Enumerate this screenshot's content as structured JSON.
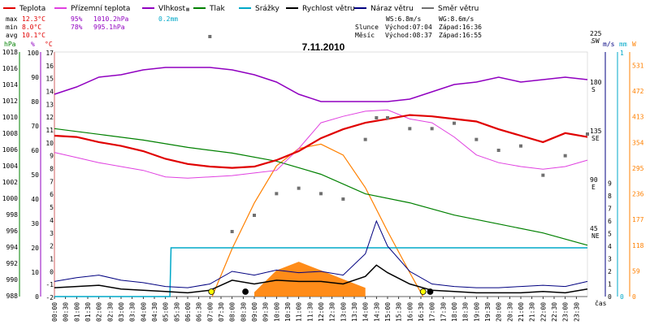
{
  "legend": [
    {
      "label": "Teplota",
      "color": "#e00000"
    },
    {
      "label": "Přízemní teplota",
      "color": "#e040e0"
    },
    {
      "label": "Vlhkost",
      "color": "#9000c0"
    },
    {
      "label": "Tlak",
      "color": "#008000"
    },
    {
      "label": "Srážky",
      "color": "#00a8c8"
    },
    {
      "label": "Rychlost větru",
      "color": "#000000"
    },
    {
      "label": "Náraz větru",
      "color": "#000080"
    },
    {
      "label": "Směr větru",
      "color": "#707070"
    }
  ],
  "stats": {
    "max": {
      "label": "max",
      "temp": "12.3°C",
      "hum": "95%",
      "press": "1010.2hPa",
      "rain": "0.2mm"
    },
    "min": {
      "label": "min",
      "temp": "8.0°C",
      "hum": "78%",
      "press": "995.1hPa"
    },
    "avg": {
      "label": "avg",
      "temp": "10.1°C"
    }
  },
  "wind_info": {
    "ws": "WS:6.8m/s",
    "wg": "WG:8.6m/s"
  },
  "sun": {
    "label": "Slunce",
    "rise": "Východ:07:04",
    "set": "Západ:16:36"
  },
  "moon": {
    "label": "Měsíc",
    "rise": "Východ:08:37",
    "set": "Západ:16:55"
  },
  "chart_data": {
    "type": "line",
    "title": "7.11.2010",
    "xlabel": "čas",
    "axes": {
      "hpa": {
        "label": "hPa",
        "ticks": [
          "1018",
          "1016",
          "1014",
          "1012",
          "1010",
          "1008",
          "1006",
          "1004",
          "1002",
          "1000",
          "998",
          "996",
          "994",
          "992",
          "990",
          "988"
        ]
      },
      "pct": {
        "label": "%",
        "ticks": [
          "100",
          "90",
          "80",
          "70",
          "60",
          "50",
          "40",
          "30",
          "20",
          "10",
          "0"
        ]
      },
      "degc": {
        "label": "°C",
        "ticks": [
          "17",
          "16",
          "15",
          "14",
          "13",
          "12",
          "11",
          "10",
          "9",
          "8",
          "7",
          "6",
          "5",
          "4",
          "3",
          "2",
          "1",
          "0",
          "-1",
          "-2"
        ]
      },
      "dir": {
        "label": "°",
        "ticks": [
          "360",
          "315",
          "270",
          "225",
          "180",
          "135",
          "90",
          "45"
        ],
        "names": [
          "N",
          "NW",
          "W",
          "SW",
          "S",
          "SE",
          "E",
          "NE"
        ]
      },
      "ms": {
        "label": "m/s",
        "ticks": [
          "9",
          "8",
          "7",
          "6",
          "5",
          "4",
          "3",
          "2",
          "1",
          "0"
        ]
      },
      "mm": {
        "label": "mm",
        "ticks": [
          "1",
          "0"
        ]
      },
      "w": {
        "label": "W",
        "ticks": [
          "531",
          "472",
          "413",
          "354",
          "295",
          "236",
          "177",
          "118",
          "59",
          "0"
        ]
      }
    },
    "x_ticks": [
      "00:00",
      "00:30",
      "01:00",
      "01:30",
      "02:00",
      "02:30",
      "03:00",
      "03:30",
      "04:00",
      "04:30",
      "05:00",
      "05:30",
      "06:00",
      "06:30",
      "07:00",
      "07:30",
      "08:00",
      "08:30",
      "09:00",
      "09:30",
      "10:00",
      "10:30",
      "11:00",
      "11:30",
      "12:00",
      "12:30",
      "13:00",
      "13:30",
      "14:00",
      "14:30",
      "15:00",
      "15:30",
      "16:00",
      "16:30",
      "17:00",
      "17:30",
      "18:00",
      "18:30",
      "19:00",
      "19:30",
      "20:00",
      "20:30",
      "21:00",
      "21:30",
      "22:00",
      "22:30",
      "23:00",
      "23:30"
    ],
    "series": [
      {
        "name": "Teplota",
        "color": "#e00000",
        "x": [
          0,
          1,
          2,
          3,
          4,
          5,
          6,
          7,
          8,
          9,
          10,
          11,
          12,
          13,
          14,
          15,
          16,
          17,
          18,
          19,
          20,
          21,
          22,
          23,
          24
        ],
        "y": [
          10.5,
          10.4,
          10.0,
          9.7,
          9.3,
          8.7,
          8.3,
          8.1,
          8.0,
          8.1,
          8.6,
          9.3,
          10.3,
          11.0,
          11.5,
          11.8,
          12.1,
          12.0,
          11.8,
          11.6,
          11.0,
          10.5,
          10.0,
          10.7,
          10.4
        ]
      },
      {
        "name": "Přízemní teplota",
        "color": "#e040e0",
        "x": [
          0,
          1,
          2,
          3,
          4,
          5,
          6,
          7,
          8,
          9,
          10,
          11,
          12,
          13,
          14,
          15,
          16,
          17,
          18,
          19,
          20,
          21,
          22,
          23,
          24
        ],
        "y": [
          9.2,
          8.8,
          8.4,
          8.1,
          7.8,
          7.3,
          7.2,
          7.3,
          7.4,
          7.6,
          7.8,
          9.5,
          11.5,
          12.0,
          12.4,
          12.5,
          11.8,
          11.5,
          10.4,
          9.0,
          8.4,
          8.1,
          7.9,
          8.1,
          8.6
        ]
      },
      {
        "name": "Vlhkost",
        "color": "#9000c0",
        "x": [
          0,
          1,
          2,
          3,
          4,
          5,
          6,
          7,
          8,
          9,
          10,
          11,
          12,
          13,
          14,
          15,
          16,
          17,
          18,
          19,
          20,
          21,
          22,
          23,
          24
        ],
        "y": [
          83,
          86,
          90,
          91,
          93,
          94,
          94,
          94,
          93,
          91,
          88,
          83,
          80,
          80,
          80,
          80,
          81,
          84,
          87,
          88,
          90,
          88,
          89,
          90,
          89
        ]
      },
      {
        "name": "Tlak",
        "color": "#008000",
        "x": [
          0,
          2,
          4,
          6,
          8,
          10,
          12,
          14,
          16,
          18,
          20,
          22,
          24
        ],
        "y": [
          1008.6,
          1007.9,
          1007.2,
          1006.3,
          1005.6,
          1004.6,
          1003.0,
          1000.6,
          999.5,
          998.0,
          996.9,
          995.8,
          994.3
        ]
      },
      {
        "name": "Srážky",
        "color": "#00a8c8",
        "x": [
          0,
          5.2,
          5.25,
          24
        ],
        "y": [
          0,
          0,
          0.2,
          0.2
        ]
      },
      {
        "name": "Rychlost větru",
        "color": "#000000",
        "x": [
          0,
          1,
          2,
          3,
          4,
          5,
          6,
          7,
          8,
          9,
          10,
          11,
          12,
          13,
          14,
          14.5,
          15,
          16,
          17,
          18,
          19,
          20,
          21,
          22,
          23,
          24
        ],
        "y": [
          0.7,
          0.8,
          0.9,
          0.6,
          0.5,
          0.4,
          0.3,
          0.5,
          1.3,
          1.0,
          1.3,
          1.2,
          1.2,
          1.0,
          1.6,
          2.5,
          1.9,
          1.0,
          0.5,
          0.4,
          0.3,
          0.3,
          0.3,
          0.4,
          0.3,
          0.6
        ]
      },
      {
        "name": "Náraz větru",
        "color": "#000080",
        "x": [
          0,
          1,
          2,
          3,
          4,
          5,
          6,
          7,
          8,
          9,
          10,
          11,
          12,
          13,
          14,
          14.5,
          15,
          16,
          17,
          18,
          19,
          20,
          21,
          22,
          23,
          24
        ],
        "y": [
          1.2,
          1.5,
          1.7,
          1.3,
          1.1,
          0.8,
          0.7,
          1.0,
          2.0,
          1.7,
          2.1,
          1.9,
          2.0,
          1.7,
          3.4,
          6.0,
          4.0,
          2.0,
          1.0,
          0.8,
          0.7,
          0.7,
          0.8,
          0.9,
          0.8,
          1.2
        ]
      },
      {
        "name": "Směr větru",
        "color": "#707070",
        "x": [
          0,
          1,
          2,
          3,
          4,
          6,
          7,
          8,
          9,
          10,
          11,
          12,
          13,
          14,
          14.5,
          15,
          16,
          17,
          18,
          19,
          20,
          21,
          22,
          23,
          24
        ],
        "y": [
          315,
          304,
          280,
          292,
          332,
          250,
          225,
          45,
          60,
          80,
          85,
          80,
          75,
          130,
          150,
          150,
          140,
          140,
          145,
          130,
          120,
          124,
          97,
          115,
          135
        ]
      },
      {
        "name": "Solární záření",
        "color": "#ff8000",
        "x": [
          7.1,
          8,
          9,
          10,
          11,
          12,
          13,
          14,
          15,
          16,
          16.6
        ],
        "y": [
          0,
          110,
          215,
          300,
          340,
          350,
          325,
          250,
          150,
          55,
          0
        ]
      }
    ]
  }
}
